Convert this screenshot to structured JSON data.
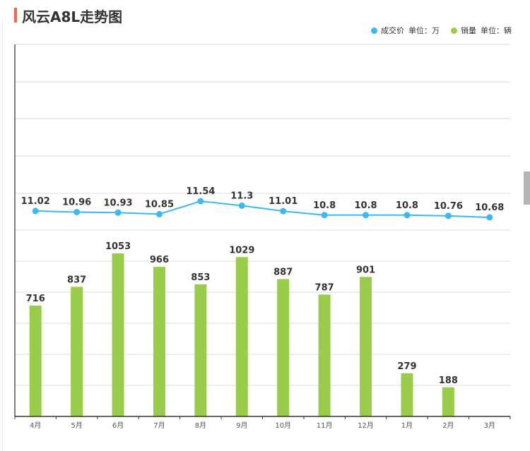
{
  "title": "风云A8L走势图",
  "legend": [
    {
      "name": "成交价",
      "unit": "单位：万",
      "color": "#3cb8f0"
    },
    {
      "name": "销量",
      "unit": "单位：辆",
      "color": "#99cc4a"
    }
  ],
  "chart_data": {
    "type": "bar+line",
    "title": "风云A8L走势图",
    "categories": [
      "4月",
      "5月",
      "6月",
      "7月",
      "8月",
      "9月",
      "10月",
      "11月",
      "12月",
      "1月",
      "2月",
      "3月"
    ],
    "series": [
      {
        "name": "成交价",
        "unit": "单位：万",
        "type": "line",
        "color": "#3cb8f0",
        "values": [
          11.02,
          10.96,
          10.93,
          10.85,
          11.54,
          11.3,
          11.01,
          10.8,
          10.8,
          10.8,
          10.76,
          10.68
        ],
        "labels": [
          "11.02",
          "10.96",
          "10.93",
          "10.85",
          "11.54",
          "11.3",
          "11.01",
          "10.8",
          "10.8",
          "10.8",
          "10.76",
          "10.68"
        ]
      },
      {
        "name": "销量",
        "unit": "单位：辆",
        "type": "bar",
        "color": "#99cc4a",
        "values": [
          716,
          837,
          1053,
          966,
          853,
          1029,
          887,
          787,
          901,
          279,
          188,
          null
        ],
        "labels": [
          "716",
          "837",
          "1053",
          "966",
          "853",
          "1029",
          "887",
          "787",
          "901",
          "279",
          "188",
          ""
        ]
      }
    ],
    "grid": true,
    "legend_position": "top-right"
  }
}
